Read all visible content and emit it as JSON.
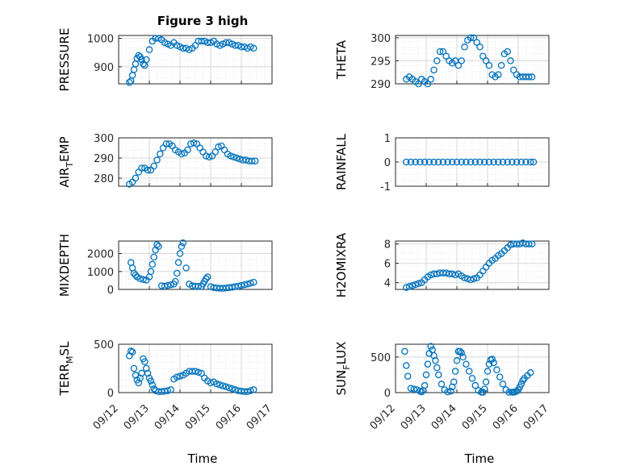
{
  "title": "Figure 3 high",
  "xlabel": "Time",
  "x_ticks": [
    "09/12",
    "09/13",
    "09/14",
    "09/15",
    "09/16",
    "09/17"
  ],
  "marker_color": "#0072BD",
  "chart_data": [
    {
      "type": "scatter",
      "ylabel": "PRESSURE",
      "ylim": [
        840,
        1010
      ],
      "yticks": [
        "900",
        "1000"
      ],
      "ytick_values": [
        900,
        1000
      ],
      "x": [
        0.35,
        0.4,
        0.45,
        0.5,
        0.55,
        0.6,
        0.65,
        0.7,
        0.75,
        0.8,
        0.85,
        0.9,
        1.0,
        1.1,
        1.2,
        1.3,
        1.4,
        1.5,
        1.6,
        1.7,
        1.8,
        1.9,
        2.0,
        2.1,
        2.2,
        2.3,
        2.4,
        2.5,
        2.6,
        2.7,
        2.8,
        2.9,
        3.0,
        3.1,
        3.2,
        3.3,
        3.4,
        3.5,
        3.6,
        3.7,
        3.8,
        3.9,
        4.0,
        4.1,
        4.2,
        4.3,
        4.4
      ],
      "y": [
        845,
        850,
        870,
        890,
        910,
        930,
        940,
        935,
        925,
        910,
        905,
        925,
        960,
        990,
        1000,
        1000,
        995,
        985,
        980,
        975,
        985,
        975,
        970,
        965,
        965,
        960,
        965,
        975,
        990,
        990,
        990,
        985,
        985,
        990,
        980,
        975,
        980,
        985,
        985,
        980,
        975,
        975,
        970,
        970,
        965,
        970,
        965
      ]
    },
    {
      "type": "scatter",
      "ylabel": "THETA",
      "ylim": [
        290,
        300.5
      ],
      "yticks": [
        "290",
        "295",
        "300"
      ],
      "ytick_values": [
        290,
        295,
        300
      ],
      "x": [
        0.35,
        0.45,
        0.55,
        0.65,
        0.75,
        0.85,
        0.95,
        1.05,
        1.15,
        1.25,
        1.35,
        1.45,
        1.55,
        1.65,
        1.75,
        1.85,
        1.95,
        2.05,
        2.15,
        2.25,
        2.35,
        2.45,
        2.55,
        2.65,
        2.75,
        2.85,
        2.95,
        3.05,
        3.15,
        3.25,
        3.35,
        3.45,
        3.55,
        3.65,
        3.75,
        3.85,
        3.95,
        4.05,
        4.15,
        4.25,
        4.35,
        4.45
      ],
      "y": [
        291,
        291.5,
        291,
        290.5,
        290,
        291,
        290.5,
        290,
        291,
        293,
        295,
        297,
        297,
        296,
        295,
        294.5,
        295,
        294,
        295,
        298,
        299.5,
        300,
        300,
        299,
        298,
        296,
        295,
        294,
        292,
        291.5,
        292,
        294,
        296.5,
        297,
        295,
        293,
        292,
        291.5,
        291.5,
        291.5,
        291.5,
        291.5
      ]
    },
    {
      "type": "scatter",
      "ylabel": "AIR_TEMP",
      "ylim": [
        276,
        300
      ],
      "yticks": [
        "280",
        "290",
        "300"
      ],
      "ytick_values": [
        280,
        290,
        300
      ],
      "x": [
        0.35,
        0.45,
        0.55,
        0.65,
        0.75,
        0.85,
        0.95,
        1.05,
        1.15,
        1.25,
        1.35,
        1.45,
        1.55,
        1.65,
        1.75,
        1.85,
        1.95,
        2.05,
        2.15,
        2.25,
        2.35,
        2.45,
        2.55,
        2.65,
        2.75,
        2.85,
        2.95,
        3.05,
        3.15,
        3.25,
        3.35,
        3.45,
        3.55,
        3.65,
        3.75,
        3.85,
        3.95,
        4.05,
        4.15,
        4.25,
        4.35,
        4.45
      ],
      "y": [
        277,
        278,
        280,
        283,
        285,
        285,
        284,
        284,
        286,
        289,
        292,
        295,
        297,
        297,
        296,
        294,
        293,
        292,
        292.5,
        294,
        297,
        297.5,
        297,
        295,
        293,
        291,
        290.5,
        291,
        293,
        295.5,
        296,
        294,
        292,
        291,
        290.5,
        290,
        289.5,
        289,
        289,
        288.5,
        288.5,
        288.5
      ]
    },
    {
      "type": "scatter",
      "ylabel": "RAINFALL",
      "ylim": [
        -1,
        1
      ],
      "yticks": [
        "-1",
        "0",
        "1"
      ],
      "ytick_values": [
        -1,
        0,
        1
      ],
      "x": [
        0.35,
        0.5,
        0.65,
        0.8,
        0.95,
        1.1,
        1.25,
        1.4,
        1.55,
        1.7,
        1.85,
        2.0,
        2.15,
        2.3,
        2.45,
        2.6,
        2.75,
        2.9,
        3.05,
        3.2,
        3.35,
        3.5,
        3.65,
        3.8,
        3.95,
        4.1,
        4.25,
        4.4,
        4.5
      ],
      "y": [
        0,
        0,
        0,
        0,
        0,
        0,
        0,
        0,
        0,
        0,
        0,
        0,
        0,
        0,
        0,
        0,
        0,
        0,
        0,
        0,
        0,
        0,
        0,
        0,
        0,
        0,
        0,
        0,
        0
      ]
    },
    {
      "type": "scatter",
      "ylabel": "MIXDEPTH",
      "ylim": [
        0,
        2700
      ],
      "yticks": [
        "0",
        "1000",
        "2000"
      ],
      "ytick_values": [
        0,
        1000,
        2000
      ],
      "x": [
        0.4,
        0.45,
        0.5,
        0.55,
        0.6,
        0.7,
        0.8,
        0.9,
        1.0,
        1.05,
        1.1,
        1.15,
        1.2,
        1.25,
        1.3,
        1.4,
        1.5,
        1.6,
        1.7,
        1.8,
        1.85,
        1.9,
        1.95,
        2.0,
        2.05,
        2.1,
        2.2,
        2.3,
        2.4,
        2.5,
        2.6,
        2.7,
        2.75,
        2.8,
        2.85,
        2.9,
        3.0,
        3.1,
        3.2,
        3.3,
        3.4,
        3.5,
        3.6,
        3.7,
        3.8,
        3.9,
        4.0,
        4.1,
        4.2,
        4.3,
        4.4
      ],
      "y": [
        1500,
        1200,
        900,
        800,
        700,
        600,
        550,
        520,
        700,
        1000,
        1400,
        1800,
        2200,
        2500,
        2400,
        200,
        180,
        220,
        260,
        300,
        450,
        900,
        1500,
        2000,
        2400,
        2600,
        1200,
        300,
        200,
        180,
        170,
        160,
        300,
        450,
        600,
        700,
        150,
        100,
        80,
        70,
        60,
        80,
        100,
        120,
        150,
        180,
        220,
        260,
        300,
        350,
        400
      ]
    },
    {
      "type": "scatter",
      "ylabel": "H2OMIXRA",
      "ylim": [
        3.3,
        8.3
      ],
      "yticks": [
        "4",
        "6",
        "8"
      ],
      "ytick_values": [
        4,
        6,
        8
      ],
      "x": [
        0.35,
        0.45,
        0.55,
        0.65,
        0.75,
        0.85,
        0.95,
        1.05,
        1.15,
        1.25,
        1.35,
        1.45,
        1.55,
        1.65,
        1.75,
        1.85,
        1.95,
        2.05,
        2.15,
        2.25,
        2.35,
        2.45,
        2.55,
        2.65,
        2.75,
        2.85,
        2.95,
        3.05,
        3.15,
        3.25,
        3.35,
        3.45,
        3.55,
        3.65,
        3.75,
        3.85,
        3.95,
        4.05,
        4.15,
        4.25,
        4.35,
        4.45
      ],
      "y": [
        3.5,
        3.6,
        3.7,
        3.8,
        3.9,
        4.0,
        4.3,
        4.6,
        4.8,
        4.9,
        4.9,
        5.0,
        5.0,
        5.0,
        4.9,
        4.9,
        4.8,
        4.9,
        4.7,
        4.5,
        4.4,
        4.3,
        4.4,
        4.5,
        4.8,
        5.2,
        5.6,
        6.0,
        6.3,
        6.5,
        6.8,
        7.0,
        7.3,
        7.6,
        7.9,
        8.0,
        8.0,
        8.0,
        8.1,
        8.0,
        8.0,
        8.0
      ]
    },
    {
      "type": "scatter",
      "ylabel": "TERR_MSL",
      "ylim": [
        0,
        500
      ],
      "yticks": [
        "0",
        "500"
      ],
      "ytick_values": [
        0,
        500
      ],
      "x": [
        0.35,
        0.4,
        0.45,
        0.5,
        0.55,
        0.6,
        0.65,
        0.7,
        0.75,
        0.8,
        0.85,
        0.9,
        0.95,
        1.0,
        1.05,
        1.1,
        1.15,
        1.2,
        1.3,
        1.4,
        1.5,
        1.6,
        1.7,
        1.8,
        1.9,
        2.0,
        2.1,
        2.2,
        2.3,
        2.4,
        2.5,
        2.6,
        2.7,
        2.8,
        2.9,
        3.0,
        3.1,
        3.2,
        3.3,
        3.4,
        3.5,
        3.6,
        3.7,
        3.8,
        3.9,
        4.0,
        4.1,
        4.2,
        4.3,
        4.4
      ],
      "y": [
        380,
        430,
        420,
        250,
        180,
        130,
        100,
        150,
        200,
        350,
        320,
        250,
        200,
        150,
        120,
        80,
        40,
        20,
        10,
        10,
        15,
        20,
        30,
        140,
        160,
        170,
        180,
        200,
        220,
        220,
        220,
        210,
        200,
        150,
        120,
        100,
        110,
        90,
        80,
        70,
        60,
        50,
        40,
        30,
        20,
        15,
        10,
        10,
        20,
        30
      ]
    },
    {
      "type": "scatter",
      "ylabel": "SUN_FLUX",
      "ylim": [
        0,
        680
      ],
      "yticks": [
        "0",
        "500"
      ],
      "ytick_values": [
        0,
        500
      ],
      "x": [
        0.3,
        0.35,
        0.4,
        0.5,
        0.6,
        0.7,
        0.8,
        0.85,
        0.9,
        0.95,
        1.0,
        1.05,
        1.1,
        1.15,
        1.2,
        1.25,
        1.3,
        1.35,
        1.4,
        1.5,
        1.6,
        1.7,
        1.8,
        1.85,
        1.9,
        1.95,
        2.0,
        2.05,
        2.1,
        2.15,
        2.2,
        2.3,
        2.4,
        2.5,
        2.6,
        2.7,
        2.8,
        2.85,
        2.9,
        2.95,
        3.0,
        3.05,
        3.1,
        3.15,
        3.2,
        3.3,
        3.4,
        3.5,
        3.6,
        3.7,
        3.8,
        3.85,
        3.9,
        3.95,
        4.0,
        4.05,
        4.1,
        4.15,
        4.2,
        4.3,
        4.4
      ],
      "y": [
        580,
        380,
        230,
        60,
        50,
        40,
        20,
        10,
        30,
        100,
        250,
        400,
        550,
        650,
        600,
        520,
        450,
        350,
        250,
        120,
        40,
        10,
        20,
        80,
        150,
        300,
        450,
        580,
        580,
        560,
        500,
        400,
        300,
        200,
        100,
        30,
        5,
        5,
        50,
        150,
        300,
        400,
        460,
        470,
        420,
        320,
        220,
        120,
        40,
        5,
        5,
        5,
        10,
        20,
        40,
        80,
        120,
        170,
        200,
        240,
        280
      ]
    }
  ]
}
